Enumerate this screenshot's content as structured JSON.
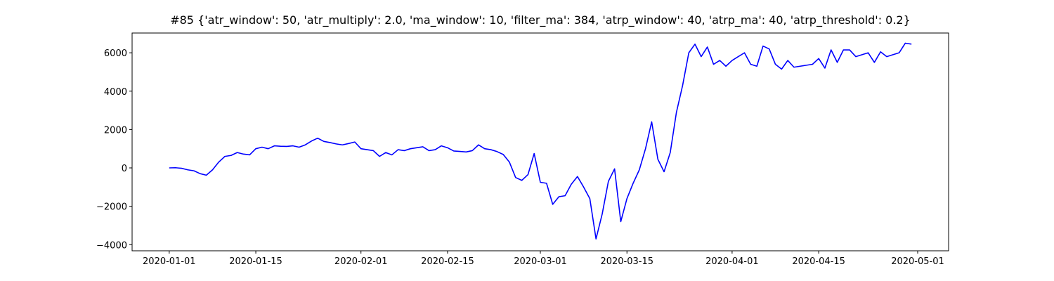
{
  "chart_data": {
    "type": "line",
    "title": "#85 {'atr_window': 50, 'atr_multiply': 2.0, 'ma_window': 10, 'filter_ma': 384, 'atrp_window': 40, 'atrp_ma': 40, 'atrp_threshold': 0.2}",
    "color": "#0000ff",
    "x": [
      "2020-01-01",
      "2020-01-02",
      "2020-01-03",
      "2020-01-04",
      "2020-01-05",
      "2020-01-06",
      "2020-01-07",
      "2020-01-08",
      "2020-01-09",
      "2020-01-10",
      "2020-01-11",
      "2020-01-12",
      "2020-01-13",
      "2020-01-14",
      "2020-01-15",
      "2020-01-16",
      "2020-01-17",
      "2020-01-18",
      "2020-01-19",
      "2020-01-20",
      "2020-01-21",
      "2020-01-22",
      "2020-01-23",
      "2020-01-24",
      "2020-01-25",
      "2020-01-26",
      "2020-01-27",
      "2020-01-28",
      "2020-01-29",
      "2020-01-30",
      "2020-01-31",
      "2020-02-01",
      "2020-02-02",
      "2020-02-03",
      "2020-02-04",
      "2020-02-05",
      "2020-02-06",
      "2020-02-07",
      "2020-02-08",
      "2020-02-09",
      "2020-02-10",
      "2020-02-11",
      "2020-02-12",
      "2020-02-13",
      "2020-02-14",
      "2020-02-15",
      "2020-02-16",
      "2020-02-17",
      "2020-02-18",
      "2020-02-19",
      "2020-02-20",
      "2020-02-21",
      "2020-02-22",
      "2020-02-23",
      "2020-02-24",
      "2020-02-25",
      "2020-02-26",
      "2020-02-27",
      "2020-02-28",
      "2020-02-29",
      "2020-03-01",
      "2020-03-02",
      "2020-03-03",
      "2020-03-04",
      "2020-03-05",
      "2020-03-06",
      "2020-03-07",
      "2020-03-08",
      "2020-03-09",
      "2020-03-10",
      "2020-03-11",
      "2020-03-12",
      "2020-03-13",
      "2020-03-14",
      "2020-03-15",
      "2020-03-16",
      "2020-03-17",
      "2020-03-18",
      "2020-03-19",
      "2020-03-20",
      "2020-03-21",
      "2020-03-22",
      "2020-03-23",
      "2020-03-24",
      "2020-03-25",
      "2020-03-26",
      "2020-03-27",
      "2020-03-28",
      "2020-03-29",
      "2020-03-30",
      "2020-03-31",
      "2020-04-01",
      "2020-04-02",
      "2020-04-03",
      "2020-04-04",
      "2020-04-05",
      "2020-04-06",
      "2020-04-07",
      "2020-04-08",
      "2020-04-09",
      "2020-04-10",
      "2020-04-11",
      "2020-04-12",
      "2020-04-13",
      "2020-04-14",
      "2020-04-15",
      "2020-04-16",
      "2020-04-17",
      "2020-04-18",
      "2020-04-19",
      "2020-04-20",
      "2020-04-21",
      "2020-04-22",
      "2020-04-23",
      "2020-04-24",
      "2020-04-25",
      "2020-04-26",
      "2020-04-27",
      "2020-04-28",
      "2020-04-29",
      "2020-04-30"
    ],
    "values": [
      0,
      10,
      -20,
      -100,
      -150,
      -300,
      -380,
      -100,
      300,
      600,
      650,
      800,
      720,
      680,
      1000,
      1080,
      1000,
      1150,
      1130,
      1120,
      1150,
      1080,
      1200,
      1400,
      1550,
      1380,
      1320,
      1250,
      1200,
      1270,
      1350,
      1000,
      950,
      900,
      600,
      800,
      680,
      950,
      900,
      1000,
      1050,
      1100,
      900,
      950,
      1150,
      1050,
      880,
      860,
      830,
      900,
      1200,
      1000,
      950,
      850,
      700,
      300,
      -500,
      -650,
      -350,
      750,
      -750,
      -800,
      -1900,
      -1500,
      -1450,
      -850,
      -450,
      -1000,
      -1600,
      -3700,
      -2400,
      -700,
      -50,
      -2800,
      -1600,
      -800,
      -100,
      1000,
      2400,
      450,
      -200,
      800,
      2900,
      4300,
      6000,
      6450,
      5800,
      6300,
      5400,
      5600,
      5300,
      5600,
      5800,
      6000,
      5400,
      5300,
      6350,
      6200,
      5400,
      5150,
      5600,
      5250,
      5300,
      5350,
      5400,
      5700,
      5200,
      6150,
      5500,
      6150,
      6150,
      5800,
      5900,
      6000,
      5500,
      6050,
      5800,
      5900,
      6000,
      6500,
      6450
    ],
    "xlim": [
      "2019-12-26",
      "2020-05-06"
    ],
    "xticks": [
      "2020-01-01",
      "2020-01-15",
      "2020-02-01",
      "2020-02-15",
      "2020-03-01",
      "2020-03-15",
      "2020-04-01",
      "2020-04-15",
      "2020-05-01"
    ],
    "ylim": [
      -4320,
      7030
    ],
    "yticks": [
      {
        "value": -4000,
        "label": "−4000"
      },
      {
        "value": -2000,
        "label": "−2000"
      },
      0,
      2000,
      4000,
      6000
    ],
    "grid": false
  }
}
